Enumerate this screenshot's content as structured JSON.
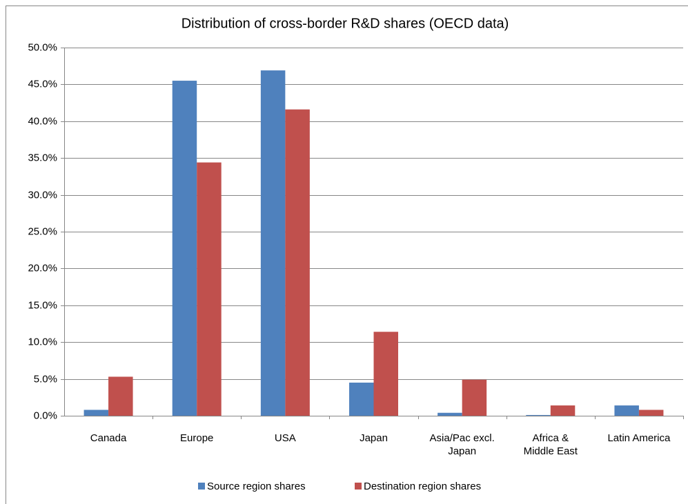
{
  "chart_data": {
    "type": "bar",
    "title": "Distribution of cross-border R&D shares (OECD data)",
    "categories": [
      "Canada",
      "Europe",
      "USA",
      "Japan",
      "Asia/Pac excl.\nJapan",
      "Africa &\nMiddle East",
      "Latin America"
    ],
    "series": [
      {
        "name": "Source region shares",
        "color": "#4f81bd",
        "values": [
          0.8,
          45.5,
          46.9,
          4.5,
          0.4,
          0.1,
          1.4
        ]
      },
      {
        "name": "Destination region shares",
        "color": "#c0504d",
        "values": [
          5.3,
          34.4,
          41.6,
          11.4,
          4.9,
          1.4,
          0.8
        ]
      }
    ],
    "ylim": [
      0,
      50
    ],
    "yticks": [
      {
        "value": 0,
        "label": "0.0%"
      },
      {
        "value": 5,
        "label": "5.0%"
      },
      {
        "value": 10,
        "label": "10.0%"
      },
      {
        "value": 15,
        "label": "15.0%"
      },
      {
        "value": 20,
        "label": "20.0%"
      },
      {
        "value": 25,
        "label": "25.0%"
      },
      {
        "value": 30,
        "label": "30.0%"
      },
      {
        "value": 35,
        "label": "35.0%"
      },
      {
        "value": 40,
        "label": "40.0%"
      },
      {
        "value": 45,
        "label": "45.0%"
      },
      {
        "value": 50,
        "label": "50.0%"
      }
    ],
    "grid": true,
    "legend": "bottom"
  }
}
